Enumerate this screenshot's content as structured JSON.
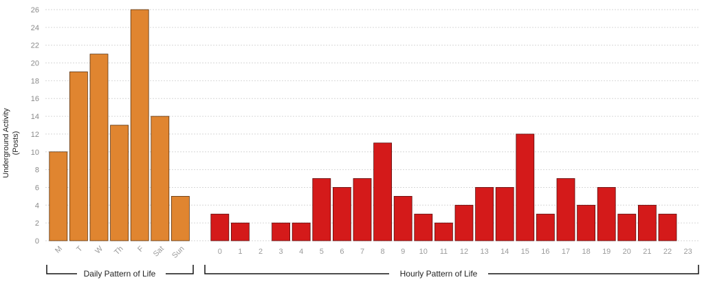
{
  "chart_data": {
    "type": "bar",
    "ylabel_lines": [
      "Underground Activity",
      "(Posts)"
    ],
    "ylim": [
      0,
      26
    ],
    "yticks": [
      0,
      2,
      4,
      6,
      8,
      10,
      12,
      14,
      16,
      18,
      20,
      22,
      24,
      26
    ],
    "grid": true,
    "colors": {
      "daily": "#E08530",
      "hourly": "#D41A1A"
    },
    "groups": [
      {
        "label": "Daily Pattern of Life",
        "categories": [
          "M",
          "T",
          "W",
          "Th",
          "F",
          "Sat",
          "Sun"
        ],
        "values": [
          10,
          19,
          21,
          13,
          26,
          14,
          5
        ]
      },
      {
        "label": "Hourly Pattern of Life",
        "categories": [
          "0",
          "1",
          "2",
          "3",
          "4",
          "5",
          "6",
          "7",
          "8",
          "9",
          "10",
          "11",
          "12",
          "13",
          "14",
          "15",
          "16",
          "17",
          "18",
          "19",
          "20",
          "21",
          "22",
          "23"
        ],
        "values": [
          3,
          2,
          0,
          2,
          2,
          7,
          6,
          7,
          11,
          5,
          3,
          2,
          4,
          6,
          6,
          12,
          3,
          7,
          4,
          6,
          3,
          4,
          3,
          0
        ]
      }
    ]
  }
}
